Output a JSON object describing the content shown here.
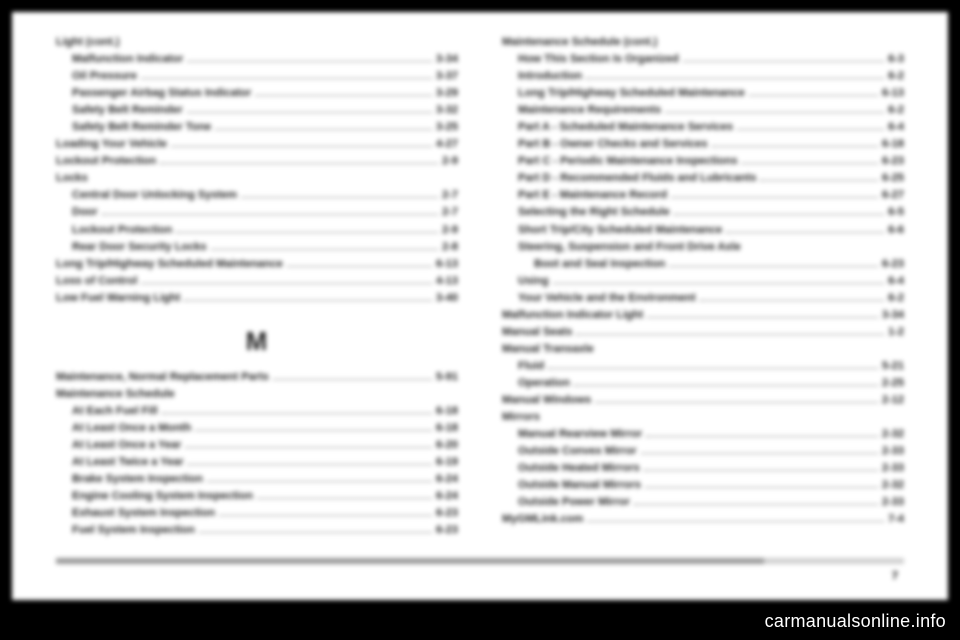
{
  "page_number": "7",
  "watermark": "carmanualsonline.info",
  "section_letter": "M",
  "left": [
    {
      "label": "Light (cont.)",
      "page": "",
      "indent": 0,
      "header": true
    },
    {
      "label": "Malfunction Indicator",
      "page": "3-34",
      "indent": 1
    },
    {
      "label": "Oil Pressure",
      "page": "3-37",
      "indent": 1
    },
    {
      "label": "Passenger Airbag Status Indicator",
      "page": "3-29",
      "indent": 1
    },
    {
      "label": "Safety Belt Reminder",
      "page": "3-32",
      "indent": 1
    },
    {
      "label": "Safety Belt Reminder Tone",
      "page": "3-25",
      "indent": 1
    },
    {
      "label": "Loading Your Vehicle",
      "page": "4-27",
      "indent": 0
    },
    {
      "label": "Lockout Protection",
      "page": "2-9",
      "indent": 0
    },
    {
      "label": "Locks",
      "page": "",
      "indent": 0,
      "header": true
    },
    {
      "label": "Central Door Unlocking System",
      "page": "2-7",
      "indent": 1
    },
    {
      "label": "Door",
      "page": "2-7",
      "indent": 1
    },
    {
      "label": "Lockout Protection",
      "page": "2-9",
      "indent": 1
    },
    {
      "label": "Rear Door Security Locks",
      "page": "2-8",
      "indent": 1
    },
    {
      "label": "Long Trip/Highway Scheduled Maintenance",
      "page": "6-13",
      "indent": 0
    },
    {
      "label": "Loss of Control",
      "page": "4-13",
      "indent": 0
    },
    {
      "label": "Low Fuel Warning Light",
      "page": "3-40",
      "indent": 0
    }
  ],
  "left2": [
    {
      "label": "Maintenance, Normal Replacement Parts",
      "page": "5-91",
      "indent": 0
    },
    {
      "label": "Maintenance Schedule",
      "page": "",
      "indent": 0,
      "header": true
    },
    {
      "label": "At Each Fuel Fill",
      "page": "6-18",
      "indent": 1
    },
    {
      "label": "At Least Once a Month",
      "page": "6-18",
      "indent": 1
    },
    {
      "label": "At Least Once a Year",
      "page": "6-20",
      "indent": 1
    },
    {
      "label": "At Least Twice a Year",
      "page": "6-19",
      "indent": 1
    },
    {
      "label": "Brake System Inspection",
      "page": "6-24",
      "indent": 1
    },
    {
      "label": "Engine Cooling System Inspection",
      "page": "6-24",
      "indent": 1
    },
    {
      "label": "Exhaust System Inspection",
      "page": "6-23",
      "indent": 1
    },
    {
      "label": "Fuel System Inspection",
      "page": "6-23",
      "indent": 1
    }
  ],
  "right": [
    {
      "label": "Maintenance Schedule (cont.)",
      "page": "",
      "indent": 0,
      "header": true
    },
    {
      "label": "How This Section Is Organized",
      "page": "6-3",
      "indent": 1
    },
    {
      "label": "Introduction",
      "page": "6-2",
      "indent": 1
    },
    {
      "label": "Long Trip/Highway Scheduled Maintenance",
      "page": "6-13",
      "indent": 1
    },
    {
      "label": "Maintenance Requirements",
      "page": "6-2",
      "indent": 1
    },
    {
      "label": "Part A - Scheduled Maintenance Services",
      "page": "6-4",
      "indent": 1
    },
    {
      "label": "Part B - Owner Checks and Services",
      "page": "6-18",
      "indent": 1
    },
    {
      "label": "Part C - Periodic Maintenance Inspections",
      "page": "6-23",
      "indent": 1
    },
    {
      "label": "Part D - Recommended Fluids and Lubricants",
      "page": "6-25",
      "indent": 1
    },
    {
      "label": "Part E - Maintenance Record",
      "page": "6-27",
      "indent": 1
    },
    {
      "label": "Selecting the Right Schedule",
      "page": "6-5",
      "indent": 1
    },
    {
      "label": "Short Trip/City Scheduled Maintenance",
      "page": "6-6",
      "indent": 1
    },
    {
      "label": "Steering, Suspension and Front Drive Axle",
      "page": "",
      "indent": 1,
      "header": true
    },
    {
      "label": "Boot and Seal Inspection",
      "page": "6-23",
      "indent": 2
    },
    {
      "label": "Using",
      "page": "6-4",
      "indent": 1
    },
    {
      "label": "Your Vehicle and the Environment",
      "page": "6-2",
      "indent": 1
    },
    {
      "label": "Malfunction Indicator Light",
      "page": "3-34",
      "indent": 0
    },
    {
      "label": "Manual Seats",
      "page": "1-2",
      "indent": 0
    },
    {
      "label": "Manual Transaxle",
      "page": "",
      "indent": 0,
      "header": true
    },
    {
      "label": "Fluid",
      "page": "5-21",
      "indent": 1
    },
    {
      "label": "Operation",
      "page": "2-25",
      "indent": 1
    },
    {
      "label": "Manual Windows",
      "page": "2-12",
      "indent": 0
    },
    {
      "label": "Mirrors",
      "page": "",
      "indent": 0,
      "header": true
    },
    {
      "label": "Manual Rearview Mirror",
      "page": "2-32",
      "indent": 1
    },
    {
      "label": "Outside Convex Mirror",
      "page": "2-33",
      "indent": 1
    },
    {
      "label": "Outside Heated Mirrors",
      "page": "2-33",
      "indent": 1
    },
    {
      "label": "Outside Manual Mirrors",
      "page": "2-32",
      "indent": 1
    },
    {
      "label": "Outside Power Mirror",
      "page": "2-33",
      "indent": 1
    },
    {
      "label": "MyGMLink.com",
      "page": "7-4",
      "indent": 0
    }
  ]
}
